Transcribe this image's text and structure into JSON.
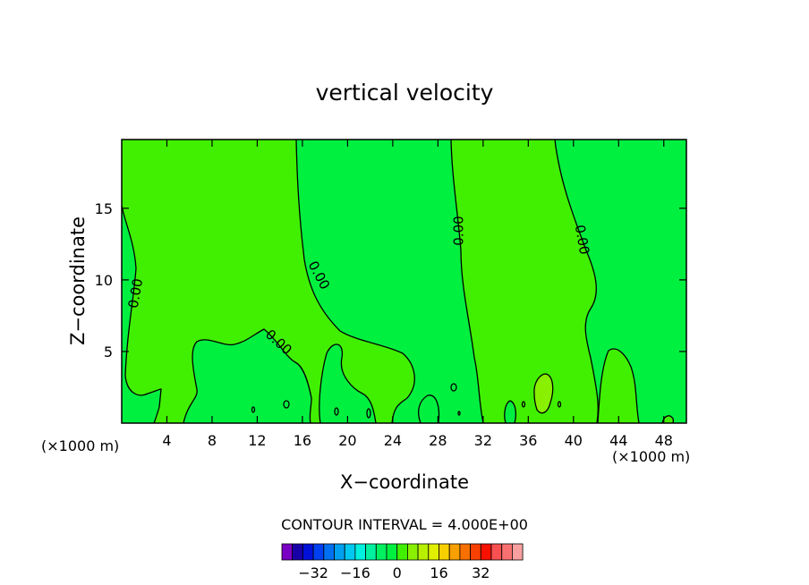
{
  "chart_data": {
    "type": "contour",
    "title": "vertical velocity",
    "xlabel": "X−coordinate",
    "ylabel": "Z−coordinate",
    "x_unit_left": "(×1000 m)",
    "x_unit_right": "(×1000 m)",
    "xlim": [
      0,
      50
    ],
    "ylim": [
      0,
      19.8
    ],
    "x_ticks": [
      4,
      8,
      12,
      16,
      20,
      24,
      28,
      32,
      36,
      40,
      44,
      48
    ],
    "x_tick_labels": [
      "4",
      "8",
      "12",
      "16",
      "20",
      "24",
      "28",
      "32",
      "36",
      "40",
      "44",
      "48"
    ],
    "y_ticks": [
      5,
      10,
      15
    ],
    "y_tick_labels": [
      "5",
      "10",
      "15"
    ],
    "contour_interval_text": "CONTOUR INTERVAL = 4.000E+00",
    "contour_labels": [
      "0.00",
      "0.00",
      "0.00",
      "0.00",
      "0.00",
      "0.00"
    ],
    "colorbar": {
      "colors": [
        "#7a00c4",
        "#1800a8",
        "#0010d8",
        "#0040f0",
        "#0070f0",
        "#00a0f0",
        "#00c8f0",
        "#00f0e0",
        "#00f0a0",
        "#00f060",
        "#00f040",
        "#40f000",
        "#88f000",
        "#b8f000",
        "#e0f000",
        "#f8d000",
        "#f8a000",
        "#f87000",
        "#f84000",
        "#f81000",
        "#f85050",
        "#f87070",
        "#f8a0a0"
      ],
      "tick_values": [
        -32,
        -16,
        0,
        16,
        32
      ],
      "tick_labels": [
        "−32",
        "−16",
        "0",
        "16",
        "32"
      ]
    },
    "fill_colors": {
      "negative": "#00f040",
      "positive": "#40f000",
      "strong_positive": "#88f000"
    }
  }
}
